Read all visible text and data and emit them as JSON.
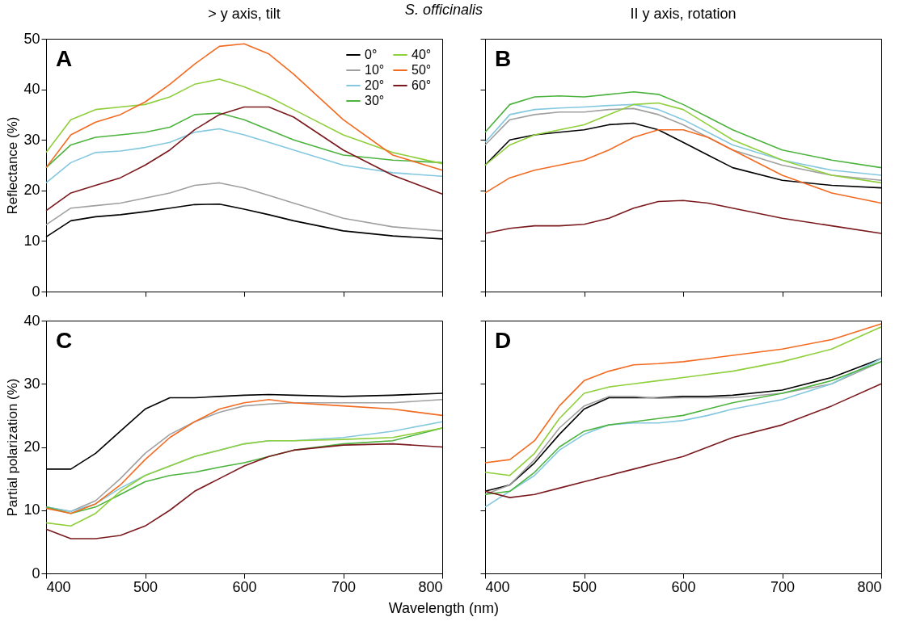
{
  "chart_data": [
    {
      "type": "line",
      "title": "> y axis, tilt",
      "subtitle": "S. officinalis",
      "ylabel": "Reflectance (%)",
      "annotations": [
        "A"
      ],
      "legend": "top right",
      "tick_labels": "y",
      "xlim": [
        400,
        800
      ],
      "xticks": [
        400,
        500,
        600,
        700,
        800
      ],
      "ylim": [
        0,
        50
      ],
      "yticks": [
        0,
        10,
        20,
        30,
        40,
        50
      ],
      "x": [
        400,
        425,
        450,
        475,
        500,
        525,
        550,
        575,
        600,
        625,
        650,
        700,
        750,
        800
      ],
      "series": [
        {
          "name": "0°",
          "color": "#000000",
          "values": [
            10.8,
            14,
            14.8,
            15.2,
            15.8,
            16.5,
            17.2,
            17.3,
            16.3,
            15.2,
            14,
            12,
            11,
            10.4
          ]
        },
        {
          "name": "10°",
          "color": "#a0a0a0",
          "values": [
            13.2,
            16.5,
            17,
            17.5,
            18.5,
            19.5,
            21,
            21.5,
            20.5,
            19,
            17.5,
            14.5,
            12.8,
            12
          ]
        },
        {
          "name": "20°",
          "color": "#84c8df",
          "values": [
            21.5,
            25.5,
            27.5,
            27.8,
            28.5,
            29.5,
            31.5,
            32.2,
            31,
            29.5,
            28,
            25,
            23.5,
            22.8
          ]
        },
        {
          "name": "30°",
          "color": "#4cb33e",
          "values": [
            24.5,
            29,
            30.5,
            31,
            31.5,
            32.5,
            35,
            35.3,
            34,
            32,
            30,
            27,
            26,
            25.5
          ]
        },
        {
          "name": "40°",
          "color": "#8fcf3c",
          "values": [
            27.5,
            34,
            36,
            36.5,
            37,
            38.5,
            41,
            42,
            40.5,
            38.5,
            36,
            31,
            27.5,
            25.3
          ]
        },
        {
          "name": "50°",
          "color": "#f26b21",
          "values": [
            24.5,
            31,
            33.5,
            35,
            37.5,
            41,
            45,
            48.5,
            49,
            47,
            43,
            34,
            27,
            24
          ]
        },
        {
          "name": "60°",
          "color": "#7b1a1e",
          "values": [
            16,
            19.5,
            21,
            22.5,
            25,
            28,
            32,
            35,
            36.5,
            36.5,
            34.5,
            28,
            23,
            19.3
          ]
        }
      ]
    },
    {
      "type": "line",
      "title": "II y axis, rotation",
      "annotations": [
        "B"
      ],
      "tick_labels": false,
      "xlim": [
        400,
        800
      ],
      "xticks": [
        400,
        500,
        600,
        700,
        800
      ],
      "ylim": [
        0,
        50
      ],
      "yticks": [
        0,
        10,
        20,
        30,
        40,
        50
      ],
      "x": [
        400,
        425,
        450,
        475,
        500,
        525,
        550,
        575,
        600,
        625,
        650,
        700,
        750,
        800
      ],
      "series": [
        {
          "color": "#000000",
          "values": [
            25,
            30,
            31,
            31.5,
            32,
            33,
            33.3,
            32,
            29.5,
            27,
            24.5,
            22,
            21,
            20.5
          ]
        },
        {
          "color": "#a0a0a0",
          "values": [
            29,
            34,
            35,
            35.5,
            35.5,
            36,
            36.2,
            35,
            33,
            30.5,
            28,
            25,
            23,
            22
          ]
        },
        {
          "color": "#84c8df",
          "values": [
            29.5,
            35,
            36,
            36.3,
            36.5,
            36.8,
            37,
            36,
            34,
            31.5,
            29,
            26,
            24,
            23
          ]
        },
        {
          "color": "#4cb33e",
          "values": [
            31.5,
            37,
            38.5,
            38.7,
            38.5,
            39,
            39.5,
            39,
            37,
            34.5,
            32,
            28,
            26,
            24.5
          ]
        },
        {
          "color": "#8fcf3c",
          "values": [
            25,
            29,
            31,
            32,
            33,
            35,
            37,
            37.3,
            36,
            33,
            30,
            26,
            23,
            21.5
          ]
        },
        {
          "color": "#f26b21",
          "values": [
            19.5,
            22.5,
            24,
            25,
            26,
            28,
            30.5,
            32,
            32,
            30.5,
            28,
            23,
            19.5,
            17.5
          ]
        },
        {
          "color": "#7b1a1e",
          "values": [
            11.5,
            12.5,
            13,
            13,
            13.3,
            14.5,
            16.5,
            17.8,
            18,
            17.5,
            16.5,
            14.5,
            13,
            11.5
          ]
        }
      ]
    },
    {
      "type": "line",
      "xlabel": "Wavelength (nm)",
      "ylabel": "Partial polarization (%)",
      "annotations": [
        "C"
      ],
      "xlim": [
        400,
        800
      ],
      "xticks": [
        400,
        500,
        600,
        700,
        800
      ],
      "ylim": [
        0,
        40
      ],
      "yticks": [
        0,
        10,
        20,
        30,
        40
      ],
      "x": [
        400,
        425,
        450,
        475,
        500,
        525,
        550,
        575,
        600,
        625,
        650,
        700,
        750,
        800
      ],
      "series": [
        {
          "color": "#000000",
          "values": [
            16.5,
            16.5,
            19,
            22.5,
            26,
            27.8,
            27.8,
            28,
            28.2,
            28.3,
            28.2,
            28,
            28.2,
            28.5
          ]
        },
        {
          "color": "#a0a0a0",
          "values": [
            10.5,
            9.8,
            11.5,
            15,
            19,
            22,
            24,
            25.5,
            26.5,
            26.8,
            27,
            27,
            27,
            27.5
          ]
        },
        {
          "color": "#84c8df",
          "values": [
            10.5,
            9.8,
            11,
            13.5,
            15.5,
            17,
            18.5,
            19.5,
            20.5,
            21,
            21,
            21.5,
            22.5,
            24
          ]
        },
        {
          "color": "#4cb33e",
          "values": [
            10.5,
            9.5,
            10.5,
            12.5,
            14.5,
            15.5,
            16,
            16.8,
            17.5,
            18.5,
            19.5,
            20.5,
            21,
            23
          ]
        },
        {
          "color": "#8fcf3c",
          "values": [
            8,
            7.5,
            9.5,
            13,
            15.5,
            17,
            18.5,
            19.5,
            20.5,
            21,
            21,
            21.2,
            21.5,
            23
          ]
        },
        {
          "color": "#f26b21",
          "values": [
            10.3,
            9.5,
            11,
            14,
            18,
            21.5,
            24,
            26,
            27,
            27.5,
            27,
            26.5,
            26,
            25
          ]
        },
        {
          "color": "#7b1a1e",
          "values": [
            7,
            5.5,
            5.5,
            6,
            7.5,
            10,
            13,
            15,
            17,
            18.5,
            19.5,
            20.3,
            20.5,
            20
          ]
        }
      ]
    },
    {
      "type": "line",
      "annotations": [
        "D"
      ],
      "tick_labels": "x",
      "xlim": [
        400,
        800
      ],
      "xticks": [
        400,
        500,
        600,
        700,
        800
      ],
      "ylim": [
        0,
        40
      ],
      "yticks": [
        0,
        10,
        20,
        30,
        40
      ],
      "x": [
        400,
        425,
        450,
        475,
        500,
        525,
        550,
        575,
        600,
        625,
        650,
        700,
        750,
        800
      ],
      "series": [
        {
          "color": "#000000",
          "values": [
            13,
            14,
            17.5,
            22,
            26,
            27.8,
            27.8,
            27.8,
            28,
            28,
            28.2,
            29,
            31,
            34
          ]
        },
        {
          "color": "#a0a0a0",
          "values": [
            12.5,
            14,
            18,
            23,
            26.5,
            28,
            28,
            27.7,
            27.8,
            27.8,
            27.8,
            28.5,
            30,
            33.5
          ]
        },
        {
          "color": "#84c8df",
          "values": [
            10.5,
            13,
            15.5,
            19.5,
            22,
            23.5,
            23.8,
            23.8,
            24.2,
            25,
            26,
            27.5,
            30,
            34
          ]
        },
        {
          "color": "#4cb33e",
          "values": [
            12.5,
            13,
            16,
            20,
            22.5,
            23.5,
            24,
            24.5,
            25,
            26,
            27,
            28.5,
            30.5,
            33.5
          ]
        },
        {
          "color": "#8fcf3c",
          "values": [
            16,
            15.5,
            19,
            24.5,
            28.5,
            29.5,
            30,
            30.5,
            31,
            31.5,
            32,
            33.5,
            35.5,
            39
          ]
        },
        {
          "color": "#f26b21",
          "values": [
            17.5,
            18,
            21,
            26.5,
            30.5,
            32,
            33,
            33.2,
            33.5,
            34,
            34.5,
            35.5,
            37,
            39.5
          ]
        },
        {
          "color": "#7b1a1e",
          "values": [
            13,
            12,
            12.5,
            13.5,
            14.5,
            15.5,
            16.5,
            17.5,
            18.5,
            20,
            21.5,
            23.5,
            26.5,
            30
          ]
        }
      ]
    }
  ]
}
